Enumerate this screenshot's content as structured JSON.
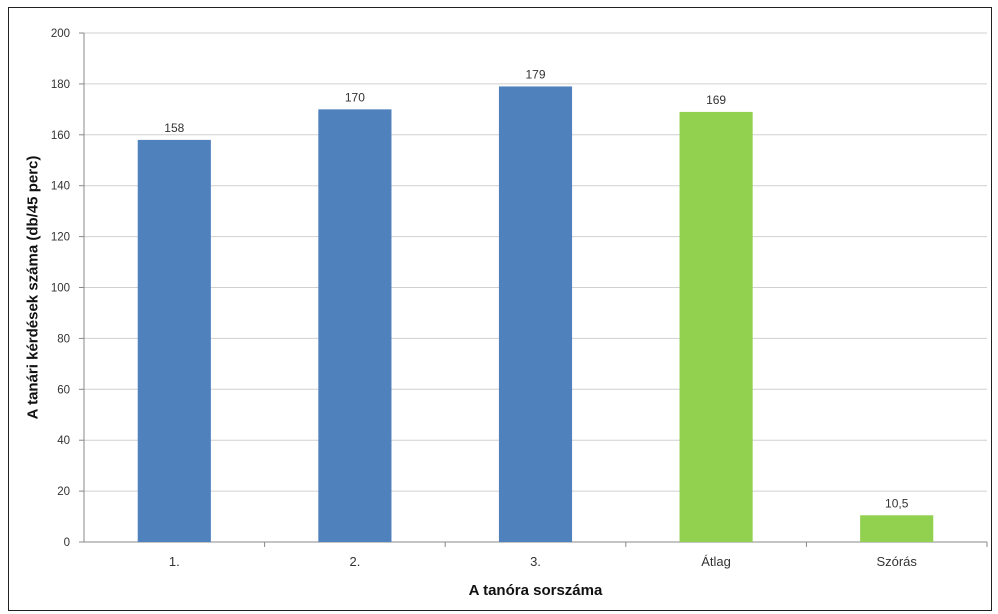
{
  "chart_data": {
    "type": "bar",
    "categories": [
      "1.",
      "2.",
      "3.",
      "Átlag",
      "Szórás"
    ],
    "values": [
      158,
      170,
      179,
      169,
      10.5
    ],
    "data_labels": [
      "158",
      "170",
      "179",
      "169",
      "10,5"
    ],
    "colors": [
      "#4f81bd",
      "#4f81bd",
      "#4f81bd",
      "#92d050",
      "#92d050"
    ],
    "xlabel": "A tanóra sorszáma",
    "ylabel": "A tanári kérdések száma (db/45 perc)",
    "ylim": [
      0,
      200
    ],
    "yticks": [
      0,
      20,
      40,
      60,
      80,
      100,
      120,
      140,
      160,
      180,
      200
    ],
    "grid": true,
    "legend": "none"
  }
}
